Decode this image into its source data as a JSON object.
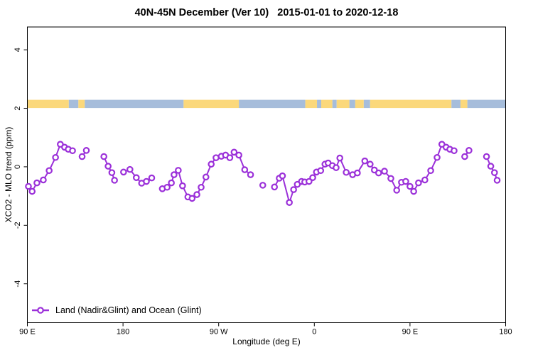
{
  "chart_data": {
    "type": "line",
    "title": "40N-45N December (Ver 10)   2015-01-01 to 2020-12-18",
    "xlabel": "Longitude (deg E)",
    "ylabel": "XCO2 - MLO trend (ppm)",
    "grid": false,
    "x_axis": {
      "range": [
        90,
        540
      ],
      "ticks": [
        90,
        180,
        270,
        360,
        450,
        540
      ],
      "tick_labels": [
        "90 E",
        "180",
        "90 W",
        "0",
        "90 E",
        "180"
      ]
    },
    "y_axis": {
      "range": [
        -5.33,
        4.78
      ],
      "ticks": [
        -4,
        -2,
        0,
        2,
        4
      ],
      "tick_labels": [
        "-4",
        "-2",
        "0",
        "2",
        "4"
      ]
    },
    "legend": {
      "label": "Land (Nadir&Glint) and Ocean (Glint)",
      "position": "bottom-left"
    },
    "series": [
      {
        "name": "Land (Nadir&Glint) and Ocean (Glint)",
        "color": "#9B30D9",
        "marker": "open-circle",
        "segments": [
          [
            [
              91,
              -0.67
            ],
            [
              94.5,
              -0.84
            ],
            [
              99,
              -0.55
            ],
            [
              105,
              -0.45
            ],
            [
              110.5,
              -0.13
            ],
            [
              116.5,
              0.32
            ],
            [
              121,
              0.77
            ],
            [
              125,
              0.67
            ],
            [
              128.5,
              0.6
            ],
            [
              132.5,
              0.55
            ]
          ],
          [
            [
              141.5,
              0.35
            ],
            [
              145.5,
              0.56
            ]
          ],
          [
            [
              162,
              0.35
            ],
            [
              166,
              0.02
            ],
            [
              169.5,
              -0.2
            ],
            [
              172,
              -0.46
            ]
          ],
          [
            [
              180.5,
              -0.18
            ],
            [
              186.5,
              -0.09
            ],
            [
              192.5,
              -0.37
            ],
            [
              197.5,
              -0.56
            ],
            [
              202,
              -0.5
            ],
            [
              207,
              -0.38
            ]
          ],
          [
            [
              217,
              -0.75
            ],
            [
              221.5,
              -0.7
            ],
            [
              225.5,
              -0.55
            ],
            [
              228,
              -0.27
            ],
            [
              232,
              -0.12
            ],
            [
              236,
              -0.65
            ],
            [
              241,
              -1.03
            ],
            [
              245,
              -1.08
            ],
            [
              249.5,
              -0.95
            ],
            [
              253.5,
              -0.7
            ],
            [
              258,
              -0.35
            ],
            [
              263,
              0.09
            ],
            [
              267.5,
              0.31
            ],
            [
              272.5,
              0.36
            ],
            [
              276.5,
              0.4
            ],
            [
              280.5,
              0.31
            ],
            [
              284.5,
              0.5
            ],
            [
              289,
              0.4
            ],
            [
              294.5,
              -0.1
            ],
            [
              300,
              -0.27
            ]
          ],
          [
            [
              311.5,
              -0.63
            ]
          ],
          [
            [
              322.5,
              -0.69
            ],
            [
              327,
              -0.39
            ],
            [
              330,
              -0.31
            ],
            [
              336.5,
              -1.22
            ],
            [
              340.5,
              -0.78
            ],
            [
              344,
              -0.6
            ],
            [
              348,
              -0.5
            ],
            [
              351,
              -0.52
            ],
            [
              355,
              -0.5
            ],
            [
              358.5,
              -0.37
            ],
            [
              362,
              -0.18
            ],
            [
              366,
              -0.13
            ],
            [
              370,
              0.09
            ],
            [
              373,
              0.13
            ],
            [
              377,
              0.04
            ],
            [
              380.5,
              -0.03
            ],
            [
              384,
              0.3
            ],
            [
              390,
              -0.19
            ],
            [
              396,
              -0.27
            ],
            [
              400.5,
              -0.21
            ],
            [
              407.5,
              0.2
            ],
            [
              412.5,
              0.09
            ],
            [
              416.5,
              -0.11
            ],
            [
              420.5,
              -0.21
            ],
            [
              426,
              -0.15
            ],
            [
              432,
              -0.4
            ],
            [
              437.5,
              -0.8
            ],
            [
              442,
              -0.53
            ],
            [
              446,
              -0.5
            ],
            [
              450,
              -0.67
            ],
            [
              453.5,
              -0.84
            ],
            [
              458,
              -0.55
            ],
            [
              464,
              -0.45
            ],
            [
              469.5,
              -0.13
            ],
            [
              475.5,
              0.32
            ],
            [
              480,
              0.77
            ],
            [
              484,
              0.67
            ],
            [
              487.5,
              0.6
            ],
            [
              491.5,
              0.55
            ]
          ],
          [
            [
              501.5,
              0.35
            ],
            [
              505.5,
              0.56
            ]
          ],
          [
            [
              522,
              0.35
            ],
            [
              526,
              0.02
            ],
            [
              529.5,
              -0.2
            ],
            [
              532,
              -0.46
            ]
          ]
        ]
      }
    ],
    "map_strip": {
      "value_range": [
        2.01,
        2.29
      ],
      "land_color": "#FBD87B",
      "ocean_color": "#A6BDDB",
      "segments": [
        [
          90,
          129,
          "land"
        ],
        [
          129,
          138,
          "ocean"
        ],
        [
          138,
          144,
          "land"
        ],
        [
          144,
          237,
          "ocean"
        ],
        [
          237,
          289,
          "land"
        ],
        [
          289,
          351.5,
          "ocean"
        ],
        [
          351.5,
          362.5,
          "land"
        ],
        [
          362.5,
          366.5,
          "ocean"
        ],
        [
          366.5,
          377,
          "land"
        ],
        [
          377,
          381,
          "ocean"
        ],
        [
          381,
          393,
          "land"
        ],
        [
          393,
          398.5,
          "ocean"
        ],
        [
          398.5,
          406.5,
          "land"
        ],
        [
          406.5,
          412.5,
          "ocean"
        ],
        [
          412.5,
          489,
          "land"
        ],
        [
          489,
          497.5,
          "ocean"
        ],
        [
          497.5,
          504,
          "land"
        ],
        [
          504,
          540,
          "ocean"
        ]
      ]
    }
  }
}
